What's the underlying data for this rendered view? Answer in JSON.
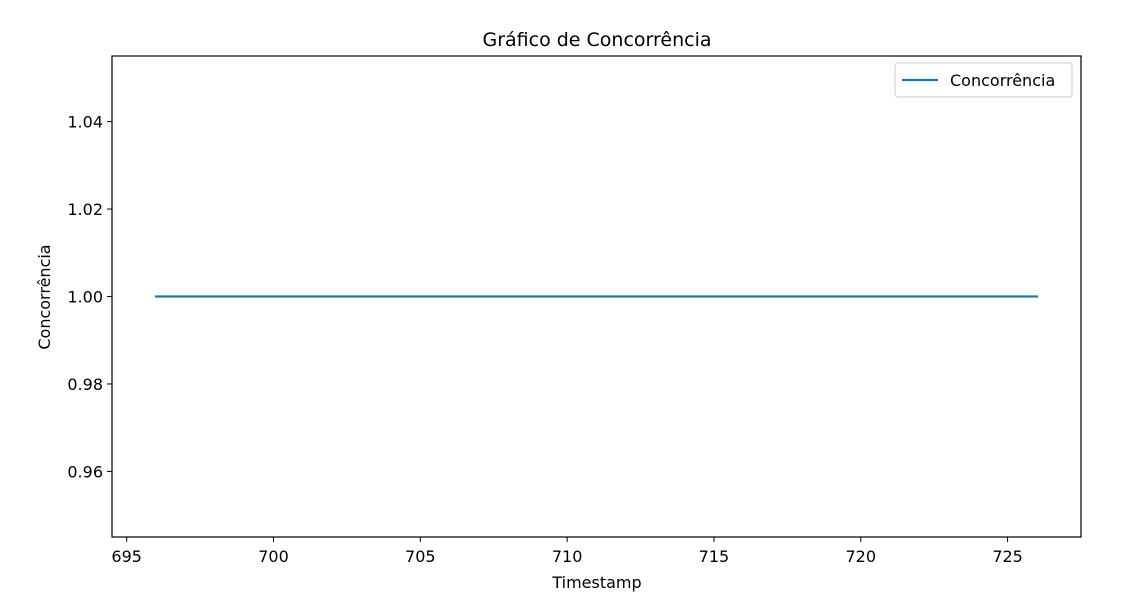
{
  "chart_data": {
    "type": "line",
    "title": "Gráfico de Concorrência",
    "xlabel": "Timestamp",
    "ylabel": "Concorrência",
    "xlim": [
      694.5,
      727.5
    ],
    "ylim": [
      0.945,
      1.055
    ],
    "xticks": [
      695,
      700,
      705,
      710,
      715,
      720,
      725
    ],
    "yticks": [
      0.96,
      0.98,
      1.0,
      1.02,
      1.04
    ],
    "xtick_labels": [
      "695",
      "700",
      "705",
      "710",
      "715",
      "720",
      "725"
    ],
    "ytick_labels": [
      "0.96",
      "0.98",
      "1.00",
      "1.02",
      "1.04"
    ],
    "grid": false,
    "legend_position": "top-right",
    "series": [
      {
        "name": "Concorrência",
        "color": "#1f77b4",
        "x": [
          696,
          697,
          698,
          699,
          700,
          701,
          702,
          703,
          704,
          705,
          706,
          707,
          708,
          709,
          710,
          711,
          712,
          713,
          714,
          715,
          716,
          717,
          718,
          719,
          720,
          721,
          722,
          723,
          724,
          725,
          726
        ],
        "y": [
          1,
          1,
          1,
          1,
          1,
          1,
          1,
          1,
          1,
          1,
          1,
          1,
          1,
          1,
          1,
          1,
          1,
          1,
          1,
          1,
          1,
          1,
          1,
          1,
          1,
          1,
          1,
          1,
          1,
          1,
          1
        ]
      }
    ]
  }
}
